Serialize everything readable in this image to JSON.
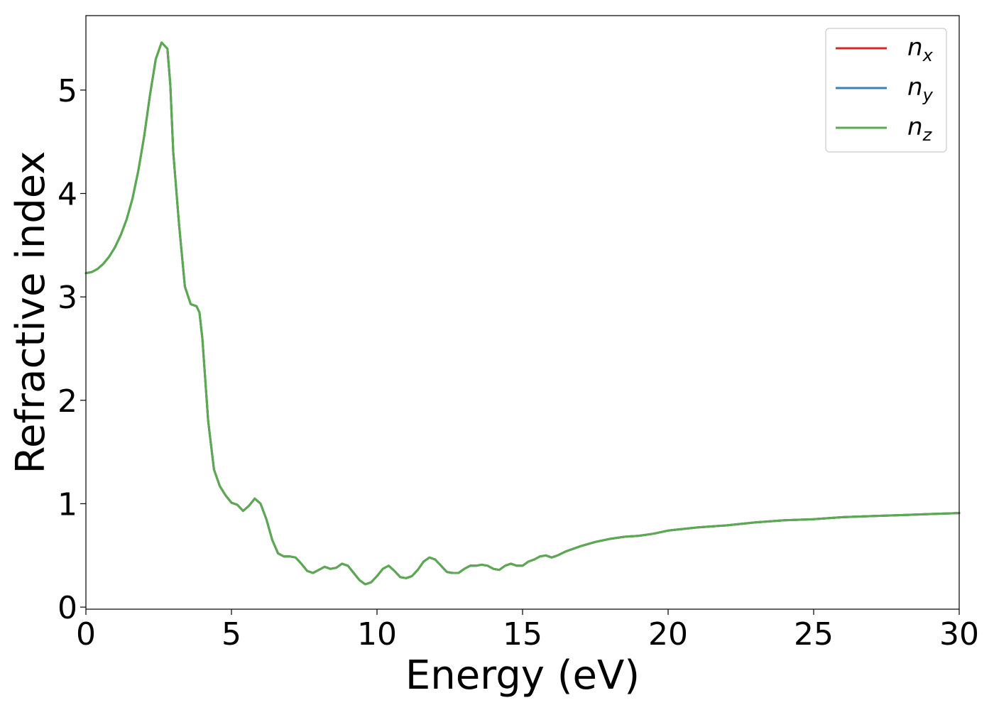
{
  "chart_data": {
    "type": "line",
    "title": "",
    "xlabel": "Energy (eV)",
    "ylabel": "Refractive index",
    "xlim": [
      0,
      30
    ],
    "ylim": [
      -0.02,
      5.72
    ],
    "xticks": [
      0,
      5,
      10,
      15,
      20,
      25,
      30
    ],
    "yticks": [
      0,
      1,
      2,
      3,
      4,
      5
    ],
    "grid": false,
    "legend_position": "top-right",
    "legend": [
      {
        "base": "n",
        "sub": "x",
        "color": "#d62728"
      },
      {
        "base": "n",
        "sub": "y",
        "color": "#3a7fb8"
      },
      {
        "base": "n",
        "sub": "z",
        "color": "#5aaa50"
      }
    ],
    "x": [
      0,
      0.2,
      0.4,
      0.6,
      0.8,
      1.0,
      1.2,
      1.4,
      1.6,
      1.8,
      2.0,
      2.2,
      2.4,
      2.6,
      2.8,
      2.9,
      3.0,
      3.2,
      3.4,
      3.6,
      3.7,
      3.8,
      3.9,
      4.0,
      4.1,
      4.2,
      4.4,
      4.6,
      4.8,
      5.0,
      5.2,
      5.4,
      5.6,
      5.8,
      6.0,
      6.2,
      6.4,
      6.6,
      6.8,
      7.0,
      7.2,
      7.4,
      7.6,
      7.8,
      8.0,
      8.2,
      8.4,
      8.6,
      8.8,
      9.0,
      9.2,
      9.4,
      9.6,
      9.8,
      10.0,
      10.2,
      10.4,
      10.6,
      10.8,
      11.0,
      11.2,
      11.4,
      11.6,
      11.8,
      12.0,
      12.2,
      12.4,
      12.6,
      12.8,
      13.0,
      13.2,
      13.4,
      13.6,
      13.8,
      14.0,
      14.2,
      14.4,
      14.6,
      14.8,
      15.0,
      15.2,
      15.4,
      15.6,
      15.8,
      16.0,
      16.2,
      16.5,
      17.0,
      17.5,
      18.0,
      18.5,
      19.0,
      19.5,
      20.0,
      21.0,
      22.0,
      23.0,
      24.0,
      25.0,
      26.0,
      27.0,
      28.0,
      29.0,
      30.0
    ],
    "series": [
      {
        "name": "n_x",
        "color": "#d62728",
        "values": [
          3.23,
          3.24,
          3.27,
          3.32,
          3.39,
          3.48,
          3.6,
          3.75,
          3.95,
          4.22,
          4.55,
          4.95,
          5.3,
          5.46,
          5.4,
          5.05,
          4.4,
          3.7,
          3.1,
          2.93,
          2.92,
          2.91,
          2.85,
          2.6,
          2.2,
          1.8,
          1.33,
          1.17,
          1.08,
          1.01,
          0.99,
          0.93,
          0.98,
          1.05,
          1.0,
          0.85,
          0.65,
          0.52,
          0.49,
          0.49,
          0.48,
          0.42,
          0.35,
          0.33,
          0.36,
          0.39,
          0.37,
          0.38,
          0.42,
          0.4,
          0.33,
          0.26,
          0.22,
          0.24,
          0.3,
          0.37,
          0.4,
          0.35,
          0.29,
          0.28,
          0.3,
          0.36,
          0.44,
          0.48,
          0.46,
          0.4,
          0.34,
          0.33,
          0.33,
          0.37,
          0.4,
          0.4,
          0.41,
          0.4,
          0.37,
          0.36,
          0.4,
          0.42,
          0.4,
          0.4,
          0.44,
          0.46,
          0.49,
          0.5,
          0.48,
          0.5,
          0.54,
          0.59,
          0.63,
          0.66,
          0.68,
          0.69,
          0.71,
          0.74,
          0.77,
          0.79,
          0.82,
          0.84,
          0.85,
          0.87,
          0.88,
          0.89,
          0.9,
          0.91
        ]
      },
      {
        "name": "n_y",
        "color": "#3a7fb8",
        "values": [
          3.23,
          3.24,
          3.27,
          3.32,
          3.39,
          3.48,
          3.6,
          3.75,
          3.95,
          4.22,
          4.55,
          4.95,
          5.3,
          5.46,
          5.4,
          5.05,
          4.4,
          3.7,
          3.1,
          2.93,
          2.92,
          2.91,
          2.85,
          2.6,
          2.2,
          1.8,
          1.33,
          1.17,
          1.08,
          1.01,
          0.99,
          0.93,
          0.98,
          1.05,
          1.0,
          0.85,
          0.65,
          0.52,
          0.49,
          0.49,
          0.48,
          0.42,
          0.35,
          0.33,
          0.36,
          0.39,
          0.37,
          0.38,
          0.42,
          0.4,
          0.33,
          0.26,
          0.22,
          0.24,
          0.3,
          0.37,
          0.4,
          0.35,
          0.29,
          0.28,
          0.3,
          0.36,
          0.44,
          0.48,
          0.46,
          0.4,
          0.34,
          0.33,
          0.33,
          0.37,
          0.4,
          0.4,
          0.41,
          0.4,
          0.37,
          0.36,
          0.4,
          0.42,
          0.4,
          0.4,
          0.44,
          0.46,
          0.49,
          0.5,
          0.48,
          0.5,
          0.54,
          0.59,
          0.63,
          0.66,
          0.68,
          0.69,
          0.71,
          0.74,
          0.77,
          0.79,
          0.82,
          0.84,
          0.85,
          0.87,
          0.88,
          0.89,
          0.9,
          0.91
        ]
      },
      {
        "name": "n_z",
        "color": "#5aaa50",
        "values": [
          3.23,
          3.24,
          3.27,
          3.32,
          3.39,
          3.48,
          3.6,
          3.75,
          3.95,
          4.22,
          4.55,
          4.95,
          5.3,
          5.46,
          5.4,
          5.05,
          4.4,
          3.7,
          3.1,
          2.93,
          2.92,
          2.91,
          2.85,
          2.6,
          2.2,
          1.8,
          1.33,
          1.17,
          1.08,
          1.01,
          0.99,
          0.93,
          0.98,
          1.05,
          1.0,
          0.85,
          0.65,
          0.52,
          0.49,
          0.49,
          0.48,
          0.42,
          0.35,
          0.33,
          0.36,
          0.39,
          0.37,
          0.38,
          0.42,
          0.4,
          0.33,
          0.26,
          0.22,
          0.24,
          0.3,
          0.37,
          0.4,
          0.35,
          0.29,
          0.28,
          0.3,
          0.36,
          0.44,
          0.48,
          0.46,
          0.4,
          0.34,
          0.33,
          0.33,
          0.37,
          0.4,
          0.4,
          0.41,
          0.4,
          0.37,
          0.36,
          0.4,
          0.42,
          0.4,
          0.4,
          0.44,
          0.46,
          0.49,
          0.5,
          0.48,
          0.5,
          0.54,
          0.59,
          0.63,
          0.66,
          0.68,
          0.69,
          0.71,
          0.74,
          0.77,
          0.79,
          0.82,
          0.84,
          0.85,
          0.87,
          0.88,
          0.89,
          0.9,
          0.91
        ]
      }
    ]
  }
}
